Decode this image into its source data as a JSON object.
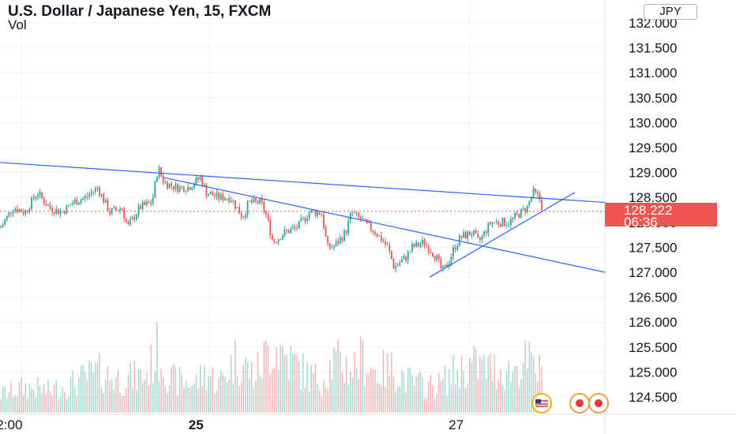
{
  "header": {
    "title": "U.S. Dollar / Japanese Yen, 15, FXCM",
    "volume_label": "Vol",
    "currency_button": "JPY"
  },
  "last_price": {
    "value": "128.222",
    "countdown": "06:36",
    "color": "#f05350"
  },
  "colors": {
    "up": "#26a69a",
    "down": "#ef5350",
    "trendline": "#2962ff",
    "grid": "#f0f3fa"
  },
  "chart_data": {
    "type": "candlestick",
    "y_axis": {
      "range": [
        124.2,
        132.3
      ],
      "ticks": [
        "132.000",
        "131.500",
        "131.000",
        "130.500",
        "130.000",
        "129.500",
        "129.000",
        "128.500",
        "128.000",
        "127.500",
        "127.000",
        "126.500",
        "126.000",
        "125.500",
        "125.000",
        "124.500"
      ]
    },
    "x_axis": {
      "range": [
        0,
        100
      ],
      "ticks": [
        {
          "label": "2:00",
          "x": 2,
          "bold": false
        },
        {
          "label": "25",
          "x": 33,
          "bold": true
        },
        {
          "label": "27",
          "x": 76,
          "bold": false
        }
      ]
    },
    "price_path": [
      [
        0,
        127.9
      ],
      [
        2,
        128.3
      ],
      [
        4,
        128.2
      ],
      [
        6,
        128.6
      ],
      [
        8,
        128.3
      ],
      [
        10,
        128.2
      ],
      [
        12,
        128.4
      ],
      [
        14,
        128.5
      ],
      [
        16,
        128.7
      ],
      [
        18,
        128.2
      ],
      [
        20,
        128.3
      ],
      [
        21,
        127.9
      ],
      [
        23,
        128.3
      ],
      [
        25,
        128.4
      ],
      [
        26,
        129.1
      ],
      [
        27,
        128.8
      ],
      [
        29,
        128.7
      ],
      [
        31,
        128.7
      ],
      [
        33,
        128.9
      ],
      [
        34,
        128.6
      ],
      [
        36,
        128.5
      ],
      [
        38,
        128.5
      ],
      [
        40,
        128.1
      ],
      [
        41,
        128.4
      ],
      [
        43,
        128.4
      ],
      [
        44,
        128.1
      ],
      [
        45,
        127.6
      ],
      [
        47,
        127.8
      ],
      [
        49,
        127.9
      ],
      [
        51,
        128.2
      ],
      [
        53,
        128.2
      ],
      [
        54,
        127.5
      ],
      [
        55,
        127.5
      ],
      [
        57,
        127.8
      ],
      [
        58,
        128.2
      ],
      [
        60,
        128.0
      ],
      [
        61,
        127.9
      ],
      [
        62,
        127.8
      ],
      [
        64,
        127.5
      ],
      [
        65,
        127.1
      ],
      [
        66,
        127.2
      ],
      [
        67,
        127.3
      ],
      [
        68,
        127.5
      ],
      [
        70,
        127.6
      ],
      [
        72,
        127.3
      ],
      [
        73,
        127.0
      ],
      [
        74,
        127.2
      ],
      [
        75,
        127.5
      ],
      [
        76,
        127.7
      ],
      [
        78,
        127.8
      ],
      [
        79,
        127.6
      ],
      [
        80,
        127.8
      ],
      [
        81,
        128.0
      ],
      [
        82,
        128.0
      ],
      [
        84,
        128.0
      ],
      [
        86,
        128.2
      ],
      [
        87,
        128.3
      ],
      [
        88,
        128.6
      ],
      [
        89,
        128.5
      ],
      [
        89.5,
        128.3
      ]
    ],
    "volume_profile": [
      [
        0,
        0.25
      ],
      [
        4,
        0.35
      ],
      [
        8,
        0.3
      ],
      [
        12,
        0.4
      ],
      [
        16,
        0.55
      ],
      [
        20,
        0.45
      ],
      [
        24,
        0.5
      ],
      [
        26,
        0.85
      ],
      [
        28,
        0.45
      ],
      [
        32,
        0.4
      ],
      [
        34,
        0.55
      ],
      [
        36,
        0.4
      ],
      [
        39,
        0.75
      ],
      [
        42,
        0.5
      ],
      [
        45,
        0.95
      ],
      [
        48,
        0.7
      ],
      [
        51,
        0.5
      ],
      [
        53,
        0.45
      ],
      [
        55,
        0.7
      ],
      [
        58,
        0.6
      ],
      [
        60,
        0.75
      ],
      [
        62,
        0.55
      ],
      [
        65,
        0.6
      ],
      [
        68,
        0.4
      ],
      [
        72,
        0.35
      ],
      [
        75,
        0.55
      ],
      [
        78,
        0.65
      ],
      [
        81,
        0.6
      ],
      [
        84,
        0.55
      ],
      [
        87,
        0.7
      ],
      [
        89,
        0.55
      ]
    ],
    "trendlines": [
      {
        "from": [
          0,
          129.2
        ],
        "to": [
          100,
          128.4
        ]
      },
      {
        "from": [
          27,
          128.9
        ],
        "to": [
          100,
          127.0
        ]
      },
      {
        "from": [
          71,
          126.9
        ],
        "to": [
          95,
          128.6
        ]
      }
    ],
    "horizontal_line": {
      "y": 128.222,
      "style": "dotted"
    },
    "grid": true,
    "events": [
      "us-flag-icon",
      "event-marker-icon",
      "event-marker-icon"
    ]
  }
}
